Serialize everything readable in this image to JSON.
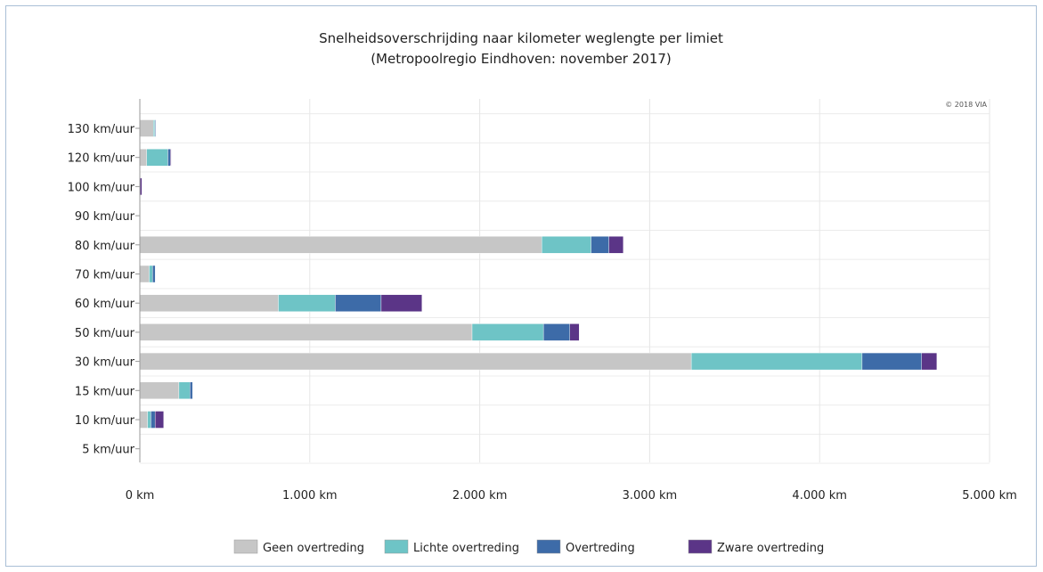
{
  "chart_data": {
    "type": "bar",
    "orientation": "horizontal",
    "stacked": true,
    "title": "Snelheidsoverschrijding naar kilometer weglengte per limiet",
    "subtitle": "(Metropoolregio Eindhoven: november 2017)",
    "credit": "© 2018 VIA",
    "categories": [
      "130 km/uur",
      "120 km/uur",
      "100 km/uur",
      "90 km/uur",
      "80 km/uur",
      "70 km/uur",
      "60 km/uur",
      "50 km/uur",
      "30 km/uur",
      "15 km/uur",
      "10 km/uur",
      "5 km/uur"
    ],
    "series": [
      {
        "name": "Geen overtreding",
        "color": "#c6c6c6",
        "values": [
          80,
          40,
          0,
          2,
          2365,
          55,
          815,
          1955,
          3245,
          230,
          45,
          3
        ]
      },
      {
        "name": "Lichte overtreding",
        "color": "#6ec4c6",
        "values": [
          8,
          125,
          0,
          0,
          290,
          20,
          335,
          420,
          1005,
          65,
          20,
          0
        ]
      },
      {
        "name": "Overtreding",
        "color": "#3d6ba8",
        "values": [
          2,
          15,
          2,
          0,
          105,
          15,
          270,
          155,
          350,
          15,
          25,
          0
        ]
      },
      {
        "name": "Zware overtreding",
        "color": "#5b3587",
        "values": [
          0,
          3,
          10,
          0,
          85,
          0,
          240,
          55,
          90,
          0,
          50,
          0
        ]
      }
    ],
    "x_ticks": [
      "0 km",
      "1.000 km",
      "2.000 km",
      "3.000 km",
      "4.000 km",
      "5.000 km"
    ],
    "xlim": [
      0,
      5000
    ],
    "xlabel": "",
    "ylabel": "",
    "grid": true,
    "legend_position": "bottom"
  }
}
